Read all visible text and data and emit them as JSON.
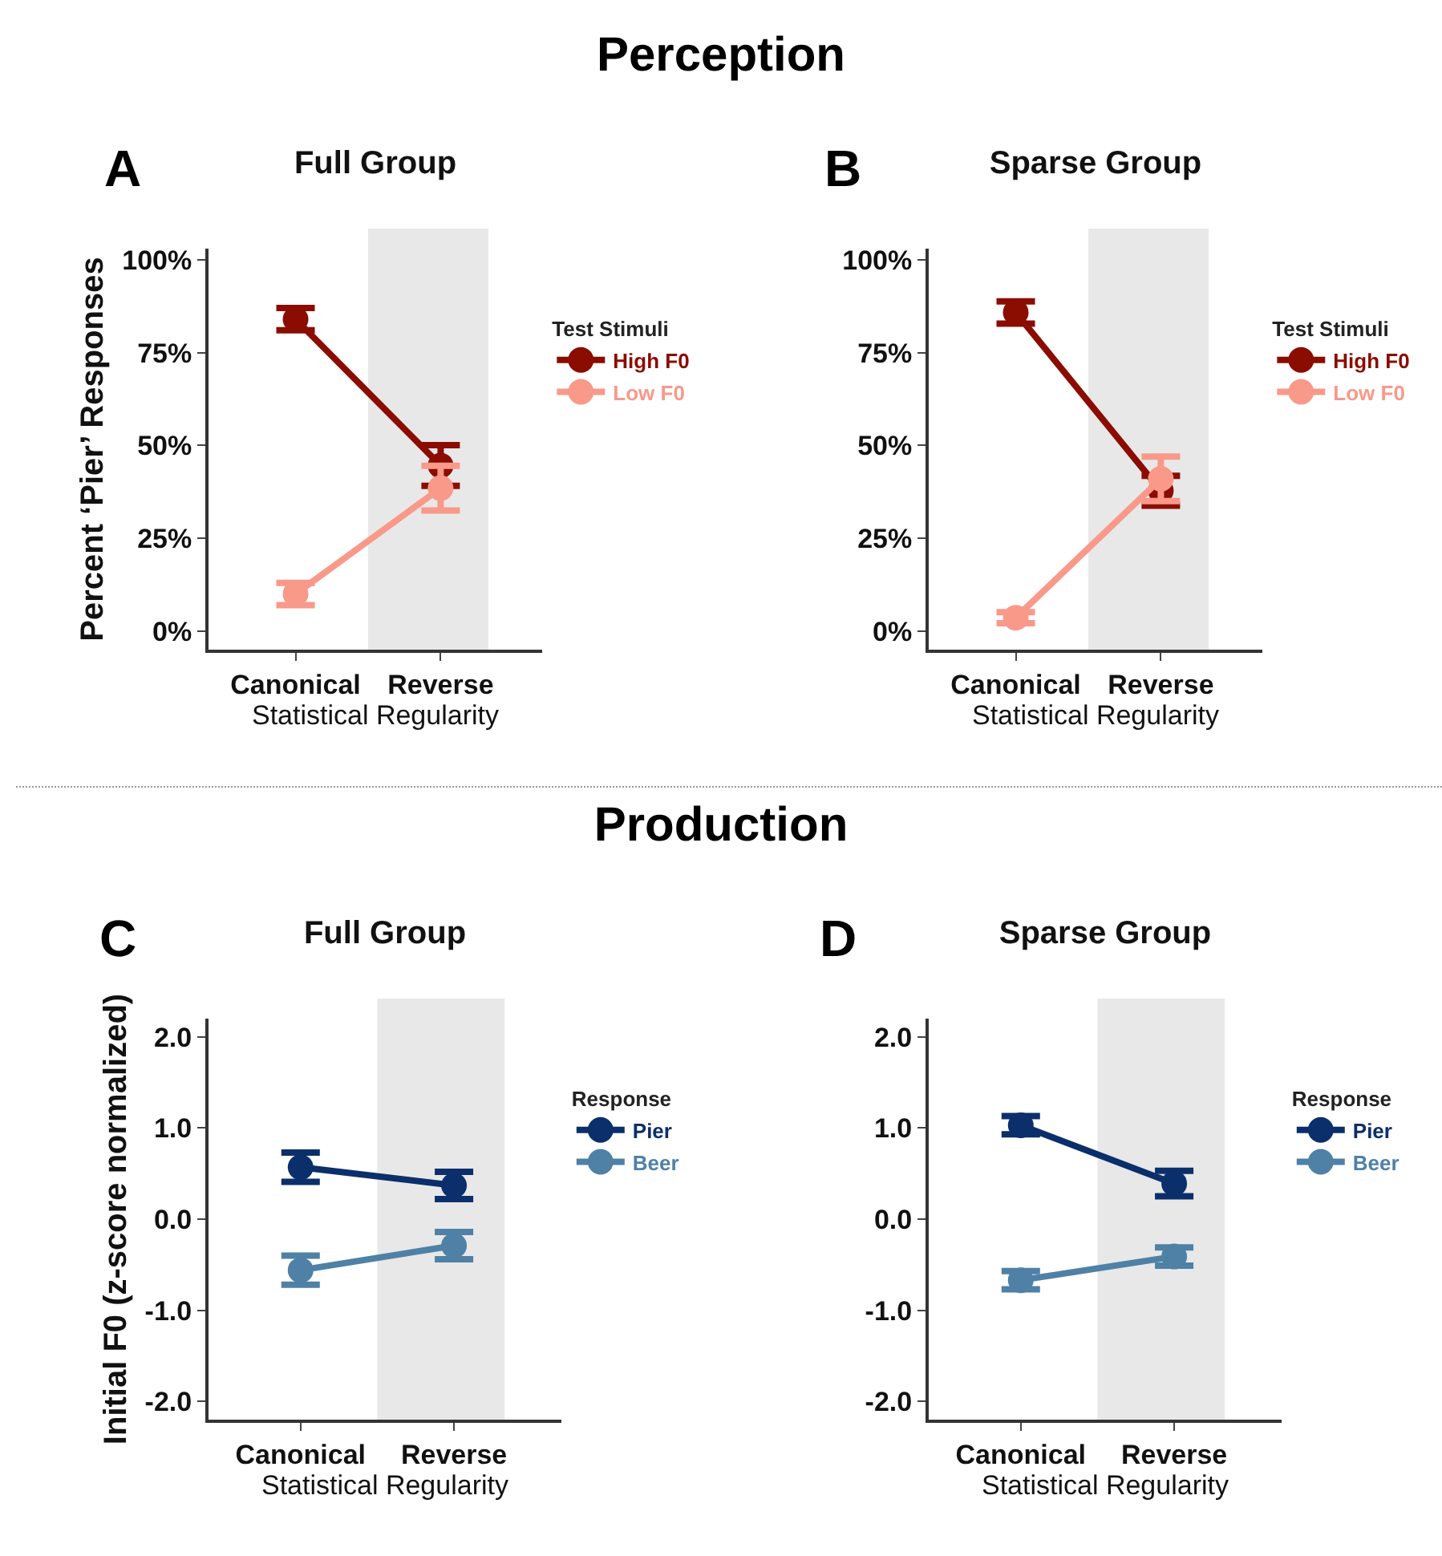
{
  "chart_data": [
    {
      "type": "line",
      "title": "Full Group",
      "annotations": [
        "Perception",
        "A"
      ],
      "categories": [
        "Canonical",
        "Reverse"
      ],
      "xlabel": "Statistical Regularity",
      "ylabel": "Percent ‘Pier’ Responses",
      "legend_title": "Test Stimuli",
      "legend": "right",
      "marker": "circle",
      "grid": false,
      "ylim": [
        -5,
        103
      ],
      "yticks": [
        {
          "value": 0,
          "label": "0%"
        },
        {
          "value": 25,
          "label": "25%"
        },
        {
          "value": 50,
          "label": "50%"
        },
        {
          "value": 75,
          "label": "75%"
        },
        {
          "value": 100,
          "label": "100%"
        }
      ],
      "series": [
        {
          "name": "High F0",
          "color": "#8b0c00",
          "values": [
            84,
            44.6
          ],
          "errors": [
            3,
            5.5
          ]
        },
        {
          "name": "Low F0",
          "color": "#f9998a",
          "values": [
            10,
            38.5
          ],
          "errors": [
            3,
            6
          ]
        }
      ]
    },
    {
      "type": "line",
      "title": "Sparse Group",
      "annotations": [
        "B"
      ],
      "categories": [
        "Canonical",
        "Reverse"
      ],
      "xlabel": "Statistical Regularity",
      "legend_title": "Test Stimuli",
      "legend": "right",
      "marker": "circle",
      "grid": false,
      "ylim": [
        -5,
        103
      ],
      "yticks": [
        {
          "value": 0,
          "label": "0%"
        },
        {
          "value": 25,
          "label": "25%"
        },
        {
          "value": 50,
          "label": "50%"
        },
        {
          "value": 75,
          "label": "75%"
        },
        {
          "value": 100,
          "label": "100%"
        }
      ],
      "series": [
        {
          "name": "High F0",
          "color": "#8b0c00",
          "values": [
            85.8,
            37.8
          ],
          "errors": [
            3,
            4
          ]
        },
        {
          "name": "Low F0",
          "color": "#f9998a",
          "values": [
            3.6,
            41
          ],
          "errors": [
            1.5,
            6
          ]
        }
      ]
    },
    {
      "type": "line",
      "title": "Full Group",
      "annotations": [
        "Production",
        "C"
      ],
      "categories": [
        "Canonical",
        "Reverse"
      ],
      "xlabel": "Statistical Regularity",
      "ylabel": "Initial F0 (z-score normalized)",
      "legend_title": "Response",
      "legend": "right",
      "marker": "circle",
      "grid": false,
      "ylim": [
        -2.2,
        2.2
      ],
      "yticks": [
        {
          "value": -2,
          "label": "-2.0"
        },
        {
          "value": -1,
          "label": "-1.0"
        },
        {
          "value": 0,
          "label": "0.0"
        },
        {
          "value": 1,
          "label": "1.0"
        },
        {
          "value": 2,
          "label": "2.0"
        }
      ],
      "series": [
        {
          "name": "Pier",
          "color": "#0b2f6b",
          "values": [
            0.57,
            0.37
          ],
          "errors": [
            0.16,
            0.15
          ]
        },
        {
          "name": "Beer",
          "color": "#4f81a6",
          "values": [
            -0.56,
            -0.29
          ],
          "errors": [
            0.16,
            0.15
          ]
        }
      ]
    },
    {
      "type": "line",
      "title": "Sparse Group",
      "annotations": [
        "D"
      ],
      "categories": [
        "Canonical",
        "Reverse"
      ],
      "xlabel": "Statistical Regularity",
      "legend_title": "Response",
      "legend": "right",
      "marker": "circle",
      "grid": false,
      "ylim": [
        -2.2,
        2.2
      ],
      "yticks": [
        {
          "value": -2,
          "label": "-2.0"
        },
        {
          "value": -1,
          "label": "-1.0"
        },
        {
          "value": 0,
          "label": "0.0"
        },
        {
          "value": 1,
          "label": "1.0"
        },
        {
          "value": 2,
          "label": "2.0"
        }
      ],
      "series": [
        {
          "name": "Pier",
          "color": "#0b2f6b",
          "values": [
            1.03,
            0.39
          ],
          "errors": [
            0.1,
            0.14
          ]
        },
        {
          "name": "Beer",
          "color": "#4f81a6",
          "values": [
            -0.67,
            -0.41
          ],
          "errors": [
            0.1,
            0.1
          ]
        }
      ]
    }
  ]
}
